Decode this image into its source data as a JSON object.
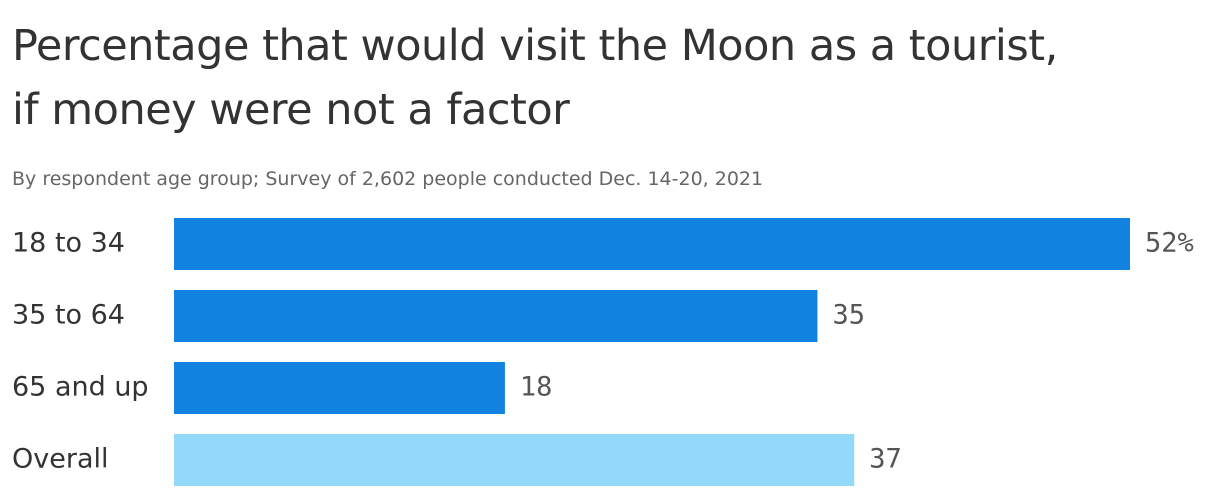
{
  "chart_data": {
    "type": "bar",
    "orientation": "horizontal",
    "title": "Percentage that would visit the Moon as a tourist,\nif money were not a factor",
    "subtitle": "By respondent age group; Survey of 2,602 people conducted Dec. 14-20, 2021",
    "categories": [
      "18 to 34",
      "35 to 64",
      "65 and up",
      "Overall"
    ],
    "values": [
      52,
      35,
      18,
      37
    ],
    "value_labels": [
      "52%",
      "35",
      "18",
      "37"
    ],
    "colors": [
      "#1283e0",
      "#1283e0",
      "#1283e0",
      "#92d9fc"
    ]
  }
}
